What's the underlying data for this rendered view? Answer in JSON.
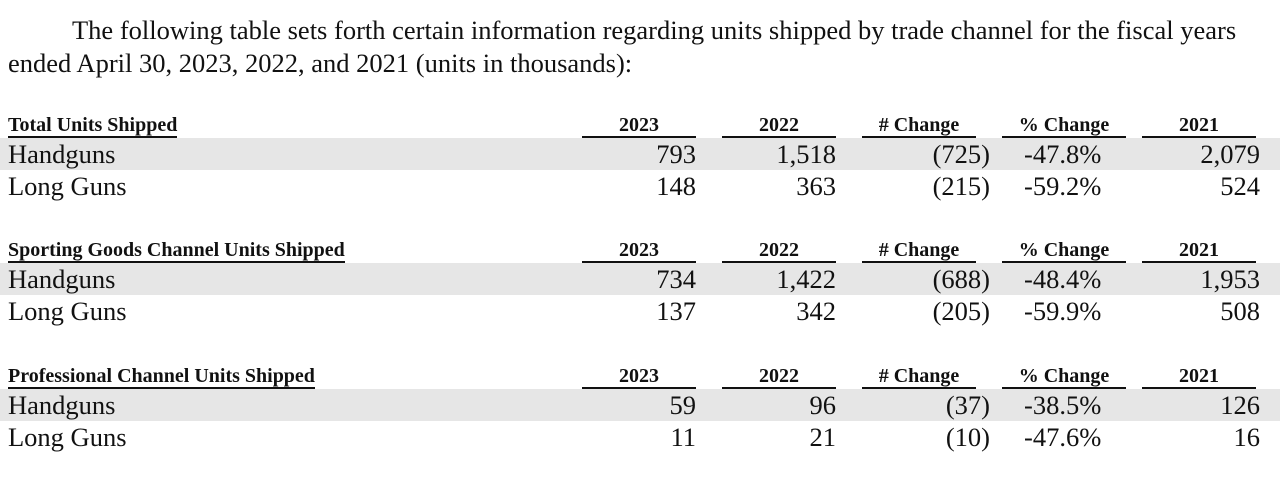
{
  "intro": "The following table sets forth certain information regarding units shipped by trade channel for the fiscal years ended April 30, 2023, 2022, and 2021 (units in thousands):",
  "columns": [
    "2023",
    "2022",
    "# Change",
    "% Change",
    "2021"
  ],
  "sections": [
    {
      "title": "Total Units Shipped",
      "rows": [
        {
          "label": "Handguns",
          "v2023": "793",
          "v2022": "1,518",
          "change": "(725)",
          "pct": "-47.8%",
          "v2021": "2,079"
        },
        {
          "label": "Long Guns",
          "v2023": "148",
          "v2022": "363",
          "change": "(215)",
          "pct": "-59.2%",
          "v2021": "524"
        }
      ]
    },
    {
      "title": "Sporting Goods Channel Units Shipped",
      "rows": [
        {
          "label": "Handguns",
          "v2023": "734",
          "v2022": "1,422",
          "change": "(688)",
          "pct": "-48.4%",
          "v2021": "1,953"
        },
        {
          "label": "Long Guns",
          "v2023": "137",
          "v2022": "342",
          "change": "(205)",
          "pct": "-59.9%",
          "v2021": "508"
        }
      ]
    },
    {
      "title": "Professional Channel Units Shipped",
      "rows": [
        {
          "label": "Handguns",
          "v2023": "59",
          "v2022": "96",
          "change": "(37)",
          "pct": "-38.5%",
          "v2021": "126"
        },
        {
          "label": "Long Guns",
          "v2023": "11",
          "v2022": "21",
          "change": "(10)",
          "pct": "-47.6%",
          "v2021": "16"
        }
      ]
    }
  ]
}
